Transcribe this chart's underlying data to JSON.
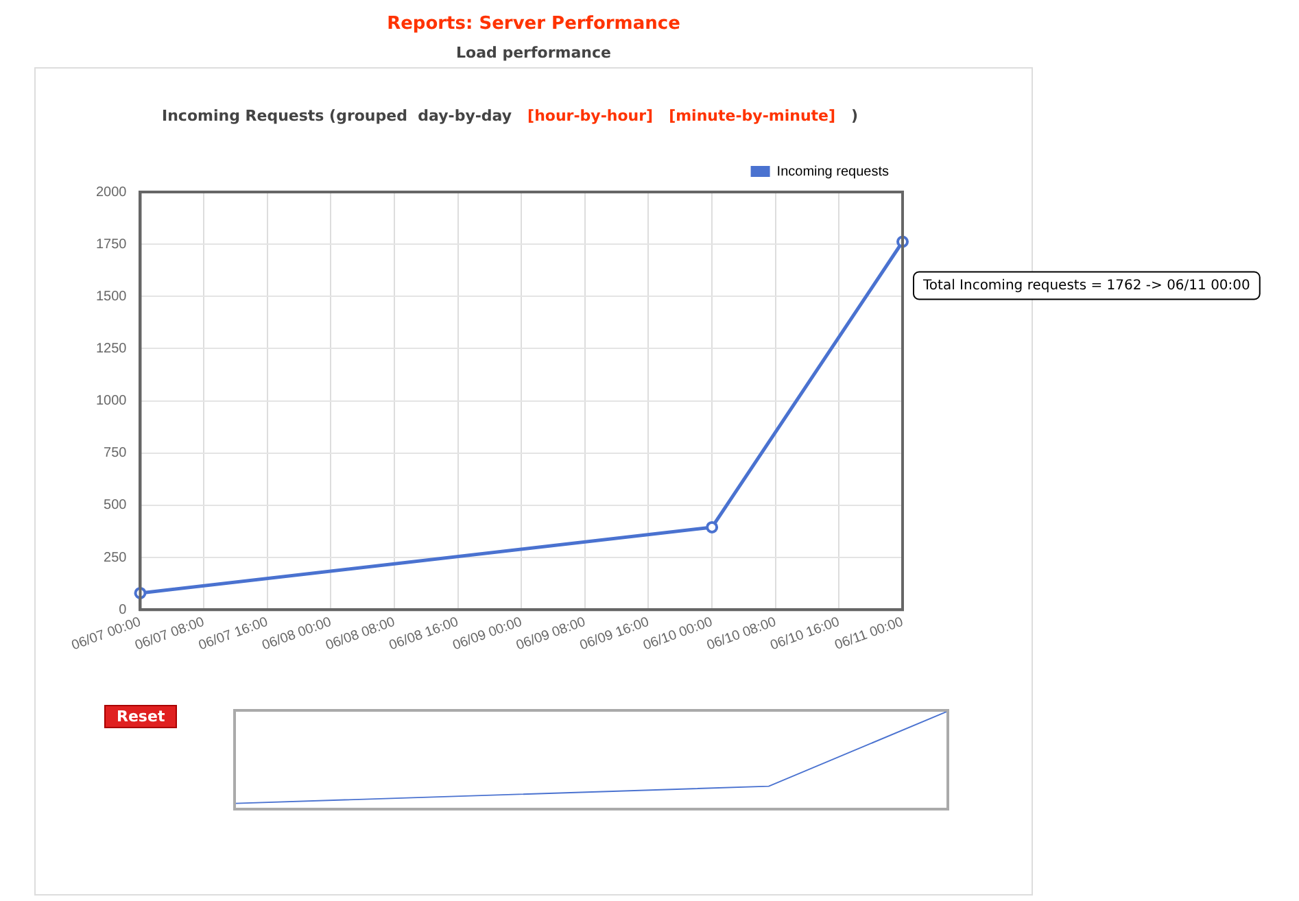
{
  "chart_data": {
    "type": "line",
    "title": "Reports: Server Performance",
    "subtitle": "Load performance",
    "annotations": [
      "Incoming Requests (grouped  day-by-day",
      "[hour-by-hour]",
      "[minute-by-minute]",
      ")",
      "Reset",
      "Total Incoming requests = 1762 -> 06/11 00:00"
    ],
    "categories": [
      "06/07 00:00",
      "06/07 08:00",
      "06/07 16:00",
      "06/08 00:00",
      "06/08 08:00",
      "06/08 16:00",
      "06/09 00:00",
      "06/09 08:00",
      "06/09 16:00",
      "06/10 00:00",
      "06/10 08:00",
      "06/10 16:00",
      "06/11 00:00"
    ],
    "series": [
      {
        "name": "Incoming requests",
        "color": "#4a72d0",
        "values": [
          80,
          null,
          null,
          null,
          null,
          null,
          null,
          null,
          null,
          395,
          null,
          null,
          1762
        ]
      }
    ],
    "ylim": [
      0,
      2000
    ],
    "yticks": [
      0,
      250,
      500,
      750,
      1000,
      1250,
      1500,
      1750,
      2000
    ],
    "grid": true,
    "legend": "top right",
    "marker": "circle",
    "line_style": "solid"
  }
}
